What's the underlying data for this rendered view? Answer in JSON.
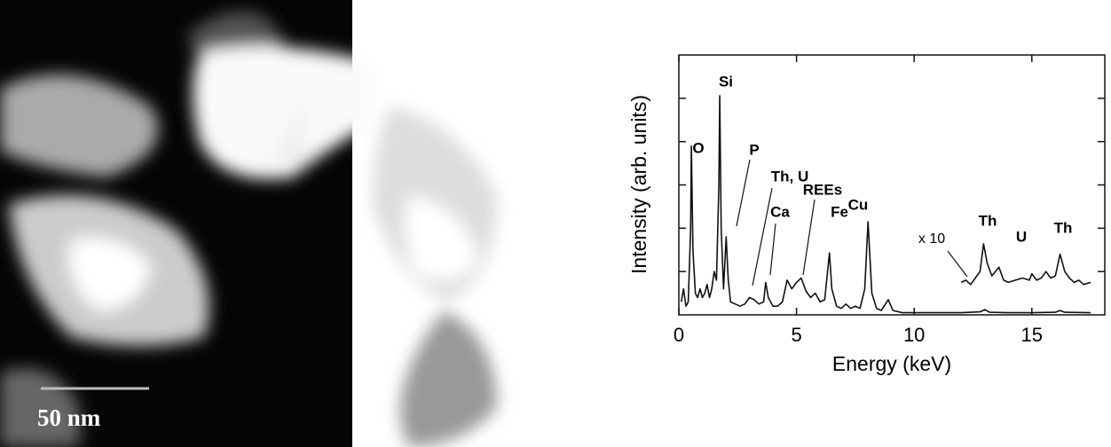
{
  "image": {
    "scale_label": "50 nm"
  },
  "chart_data": {
    "type": "line",
    "xlabel": "Energy (keV)",
    "ylabel": "Intensity (arb. units)",
    "xlim": [
      0,
      18.1
    ],
    "xticks": [
      0,
      5,
      10,
      15
    ],
    "ylim": [
      0,
      6
    ],
    "yticks": [
      1,
      2,
      3,
      4,
      5
    ],
    "annotations": [
      "O",
      "Si",
      "P",
      "Th, U",
      "Ca",
      "REEs",
      "Fe",
      "Cu",
      "x 10",
      "Th",
      "U",
      "Th"
    ],
    "series": [
      {
        "color": "#111111",
        "x": [
          0.1,
          0.2,
          0.3,
          0.4,
          0.5,
          0.53,
          0.6,
          0.7,
          0.8,
          0.9,
          1.0,
          1.1,
          1.2,
          1.3,
          1.4,
          1.5,
          1.6,
          1.7,
          1.74,
          1.8,
          1.9,
          2.01,
          2.1,
          2.2,
          2.4,
          2.6,
          2.8,
          3.0,
          3.2,
          3.4,
          3.6,
          3.69,
          3.8,
          4.0,
          4.2,
          4.4,
          4.6,
          4.8,
          5.0,
          5.2,
          5.4,
          5.6,
          5.8,
          6.0,
          6.2,
          6.4,
          6.5,
          6.7,
          6.9,
          7.1,
          7.3,
          7.5,
          7.7,
          7.9,
          8.04,
          8.2,
          8.4,
          8.6,
          8.9,
          9.1,
          9.5,
          10,
          11,
          12,
          12.8,
          13.0,
          13.2,
          14,
          15,
          16,
          16.2,
          16.4,
          17.5
        ],
        "values": [
          0.3,
          0.6,
          0.2,
          0.3,
          2.0,
          3.9,
          1.5,
          0.5,
          0.4,
          0.6,
          0.4,
          0.5,
          0.7,
          0.4,
          0.6,
          1.0,
          0.8,
          3.0,
          5.06,
          2.0,
          0.6,
          1.8,
          0.8,
          0.3,
          0.25,
          0.2,
          0.25,
          0.4,
          0.35,
          0.25,
          0.3,
          0.75,
          0.4,
          0.2,
          0.2,
          0.3,
          0.8,
          0.6,
          0.75,
          0.85,
          0.55,
          0.4,
          0.5,
          0.3,
          0.35,
          1.43,
          0.6,
          0.2,
          0.15,
          0.25,
          0.15,
          0.2,
          0.15,
          0.6,
          2.15,
          0.5,
          0.15,
          0.1,
          0.35,
          0.1,
          0.05,
          0.05,
          0.05,
          0.05,
          0.07,
          0.12,
          0.06,
          0.05,
          0.05,
          0.06,
          0.1,
          0.06,
          0.05
        ]
      },
      {
        "color": "#111111",
        "x": [
          12.0,
          12.2,
          12.4,
          12.6,
          12.8,
          12.95,
          13.1,
          13.3,
          13.6,
          13.8,
          14.0,
          14.3,
          14.6,
          14.9,
          15.0,
          15.2,
          15.4,
          15.6,
          15.8,
          16.0,
          16.2,
          16.4,
          16.6,
          16.8,
          17.0,
          17.2,
          17.5
        ],
        "values": [
          0.75,
          0.8,
          0.7,
          0.85,
          1.0,
          1.64,
          1.2,
          0.9,
          1.1,
          0.8,
          0.75,
          0.8,
          0.85,
          0.8,
          0.95,
          0.8,
          0.85,
          1.0,
          0.85,
          0.9,
          1.4,
          1.0,
          0.85,
          0.75,
          0.8,
          0.7,
          0.75
        ]
      }
    ]
  }
}
